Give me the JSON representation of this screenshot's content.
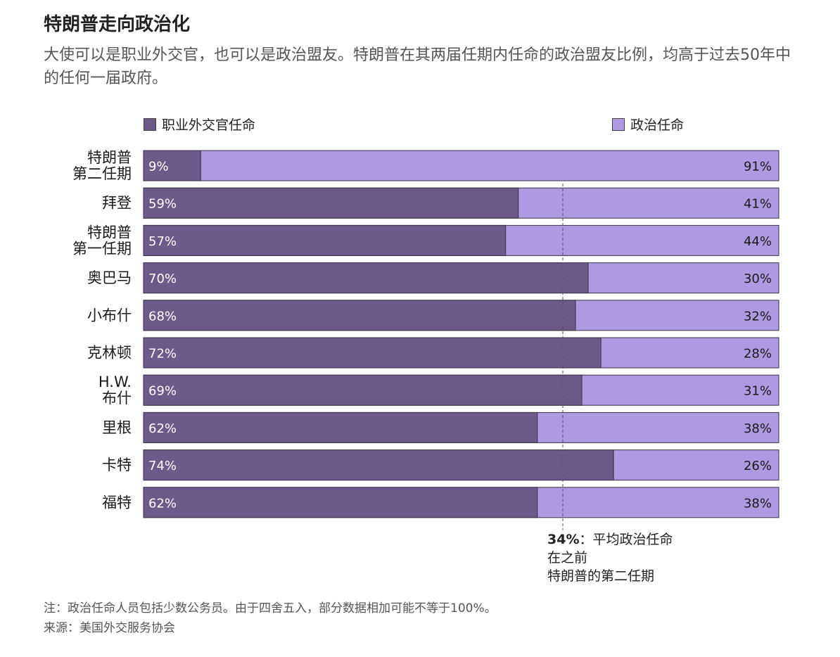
{
  "title": "特朗普走向政治化",
  "subtitle": "大使可以是职业外交官，也可以是政治盟友。特朗普在其两届任期内任命的政治盟友比例，均高于过去50年中的任何一届政府。",
  "colors": {
    "career": "#6c5a8a",
    "political": "#ae9ae0",
    "border": "#3a3345"
  },
  "chart_data": {
    "type": "bar",
    "orientation": "horizontal",
    "stacked": true,
    "categories": [
      [
        "特朗普",
        "第二任期"
      ],
      [
        "拜登"
      ],
      [
        "特朗普",
        "第一任期"
      ],
      [
        "奥巴马"
      ],
      [
        "小布什"
      ],
      [
        "克林顿"
      ],
      [
        "H.W.",
        "布什"
      ],
      [
        "里根"
      ],
      [
        "卡特"
      ],
      [
        "福特"
      ]
    ],
    "series": [
      {
        "name": "职业外交官任命",
        "values": [
          9,
          59,
          57,
          70,
          68,
          72,
          69,
          62,
          74,
          62
        ],
        "labels": [
          "9%",
          "59%",
          "57%",
          "70%",
          "68%",
          "72%",
          "69%",
          "62%",
          "74%",
          "62%"
        ]
      },
      {
        "name": "政治任命",
        "values": [
          91,
          41,
          44,
          30,
          32,
          28,
          31,
          38,
          26,
          38
        ],
        "labels": [
          "91%",
          "41%",
          "44%",
          "30%",
          "32%",
          "28%",
          "31%",
          "38%",
          "26%",
          "38%"
        ]
      }
    ],
    "xlim": [
      0,
      100
    ],
    "reference_line": {
      "value_political": 34,
      "label_pct": "34%",
      "label_lines": [
        "：平均政治任命",
        "在之前",
        "特朗普的第二任期"
      ]
    },
    "legend_position": "top"
  },
  "footer": {
    "note": "注：政治任命人员包括少数公务员。由于四舍五入，部分数据相加可能不等于100%。",
    "source": "来源：美国外交服务协会"
  }
}
